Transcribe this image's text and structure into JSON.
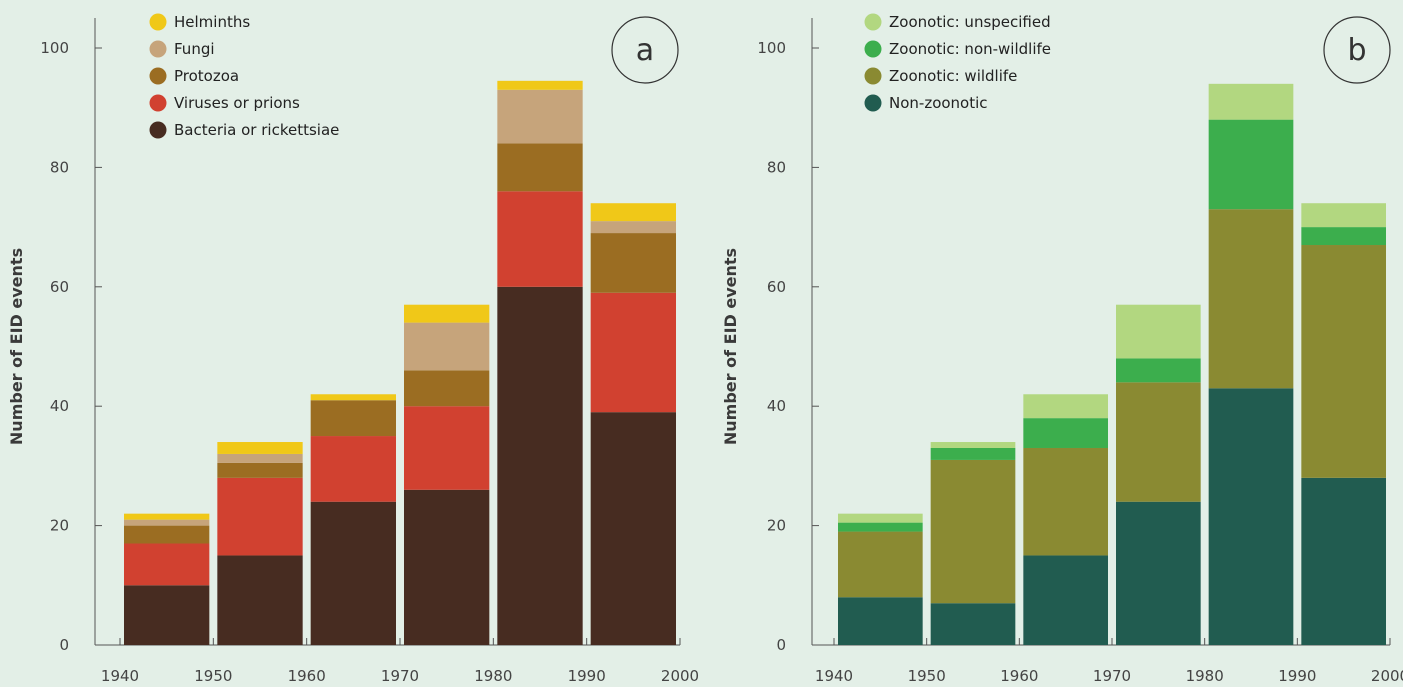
{
  "chart_data": [
    {
      "type": "bar",
      "stacked": true,
      "panel": "a",
      "ylabel": "Number of EID events",
      "xlabel": "",
      "ylim": [
        0,
        100
      ],
      "yticks": [
        0,
        20,
        40,
        60,
        80,
        100
      ],
      "xticks": [
        "1940",
        "1950",
        "1960",
        "1970",
        "1980",
        "1990",
        "2000"
      ],
      "categories": [
        "1940-1950",
        "1950-1960",
        "1960-1970",
        "1970-1980",
        "1980-1990",
        "1990-2000"
      ],
      "legend_position": "top-left",
      "series": [
        {
          "name": "Bacteria or rickettsiae",
          "color": "#472c21",
          "values": [
            10,
            15,
            24,
            26,
            60,
            39
          ]
        },
        {
          "name": "Viruses or prions",
          "color": "#d14130",
          "values": [
            7,
            13,
            11,
            14,
            16,
            20
          ]
        },
        {
          "name": "Protozoa",
          "color": "#9b6d22",
          "values": [
            3,
            2.5,
            6,
            6,
            8,
            10
          ]
        },
        {
          "name": "Fungi",
          "color": "#c6a47b",
          "values": [
            1,
            1.5,
            0,
            8,
            9,
            2
          ]
        },
        {
          "name": "Helminths",
          "color": "#f0c818",
          "values": [
            1,
            2,
            1,
            3,
            1.5,
            3
          ]
        }
      ]
    },
    {
      "type": "bar",
      "stacked": true,
      "panel": "b",
      "ylabel": "Number of EID events",
      "xlabel": "",
      "ylim": [
        0,
        100
      ],
      "yticks": [
        0,
        20,
        40,
        60,
        80,
        100
      ],
      "xticks": [
        "1940",
        "1950",
        "1960",
        "1970",
        "1980",
        "1990",
        "2000"
      ],
      "categories": [
        "1940-1950",
        "1950-1960",
        "1960-1970",
        "1970-1980",
        "1980-1990",
        "1990-2000"
      ],
      "legend_position": "top-left",
      "series": [
        {
          "name": "Non-zoonotic",
          "color": "#215c50",
          "values": [
            8,
            7,
            15,
            24,
            43,
            28
          ]
        },
        {
          "name": "Zoonotic: wildlife",
          "color": "#8a8a32",
          "values": [
            11,
            24,
            18,
            20,
            30,
            39
          ]
        },
        {
          "name": "Zoonotic: non-wildlife",
          "color": "#3cae4d",
          "values": [
            1.5,
            2,
            5,
            4,
            15,
            3
          ]
        },
        {
          "name": "Zoonotic: unspecified",
          "color": "#b2d780",
          "values": [
            1.5,
            1,
            4,
            9,
            6,
            4
          ]
        }
      ]
    }
  ]
}
